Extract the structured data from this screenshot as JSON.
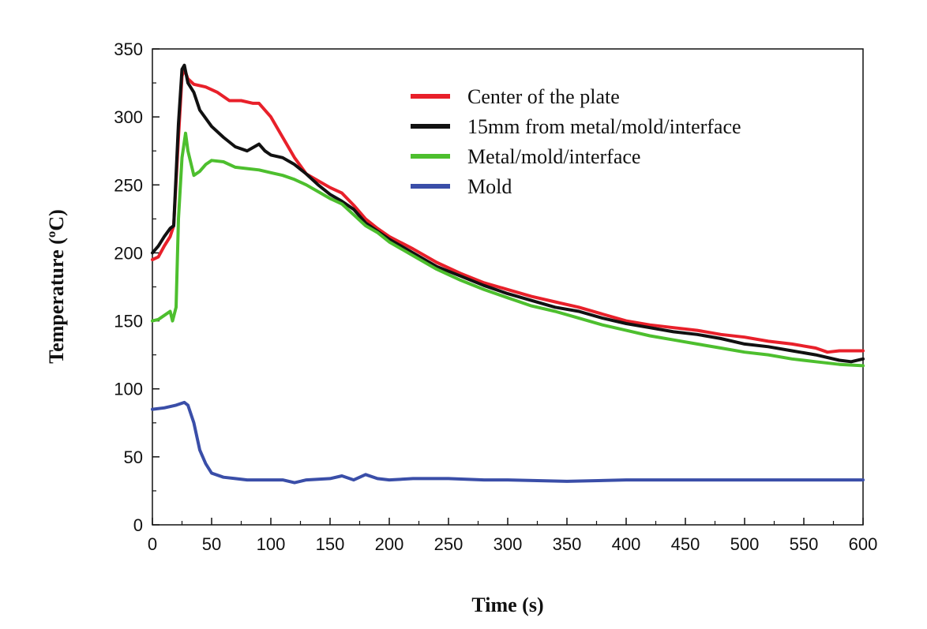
{
  "chart_data": {
    "type": "line",
    "title": "",
    "xlabel": "Time (s)",
    "ylabel": "Temperature (ºC)",
    "xlim": [
      0,
      600
    ],
    "ylim": [
      0,
      350
    ],
    "xticks": [
      0,
      50,
      100,
      150,
      200,
      250,
      300,
      350,
      400,
      450,
      500,
      550,
      600
    ],
    "yticks": [
      0,
      50,
      100,
      150,
      200,
      250,
      300,
      350
    ],
    "grid": false,
    "legend_position": "top-right",
    "series": [
      {
        "name": "Center of the plate",
        "color": "#e8202a",
        "points": [
          [
            0,
            195
          ],
          [
            5,
            197
          ],
          [
            10,
            205
          ],
          [
            15,
            212
          ],
          [
            18,
            220
          ],
          [
            22,
            285
          ],
          [
            25,
            330
          ],
          [
            27,
            335
          ],
          [
            30,
            328
          ],
          [
            35,
            324
          ],
          [
            45,
            322
          ],
          [
            55,
            318
          ],
          [
            65,
            312
          ],
          [
            75,
            312
          ],
          [
            85,
            310
          ],
          [
            90,
            310
          ],
          [
            100,
            300
          ],
          [
            110,
            285
          ],
          [
            120,
            270
          ],
          [
            130,
            258
          ],
          [
            140,
            253
          ],
          [
            150,
            248
          ],
          [
            160,
            244
          ],
          [
            170,
            235
          ],
          [
            180,
            225
          ],
          [
            190,
            218
          ],
          [
            200,
            212
          ],
          [
            220,
            203
          ],
          [
            240,
            193
          ],
          [
            260,
            185
          ],
          [
            280,
            178
          ],
          [
            300,
            173
          ],
          [
            320,
            168
          ],
          [
            340,
            164
          ],
          [
            360,
            160
          ],
          [
            380,
            155
          ],
          [
            400,
            150
          ],
          [
            420,
            147
          ],
          [
            440,
            145
          ],
          [
            460,
            143
          ],
          [
            480,
            140
          ],
          [
            500,
            138
          ],
          [
            520,
            135
          ],
          [
            540,
            133
          ],
          [
            560,
            130
          ],
          [
            570,
            127
          ],
          [
            580,
            128
          ],
          [
            600,
            128
          ]
        ]
      },
      {
        "name": "15mm from metal/mold/interface",
        "color": "#111111",
        "points": [
          [
            0,
            200
          ],
          [
            5,
            205
          ],
          [
            10,
            212
          ],
          [
            15,
            218
          ],
          [
            18,
            220
          ],
          [
            22,
            295
          ],
          [
            25,
            335
          ],
          [
            27,
            338
          ],
          [
            30,
            325
          ],
          [
            35,
            318
          ],
          [
            40,
            305
          ],
          [
            50,
            293
          ],
          [
            60,
            285
          ],
          [
            70,
            278
          ],
          [
            80,
            275
          ],
          [
            90,
            280
          ],
          [
            95,
            275
          ],
          [
            100,
            272
          ],
          [
            110,
            270
          ],
          [
            120,
            265
          ],
          [
            130,
            258
          ],
          [
            140,
            250
          ],
          [
            150,
            243
          ],
          [
            160,
            238
          ],
          [
            170,
            232
          ],
          [
            180,
            222
          ],
          [
            190,
            216
          ],
          [
            200,
            210
          ],
          [
            220,
            200
          ],
          [
            240,
            190
          ],
          [
            260,
            183
          ],
          [
            280,
            176
          ],
          [
            300,
            170
          ],
          [
            320,
            165
          ],
          [
            340,
            160
          ],
          [
            360,
            157
          ],
          [
            380,
            152
          ],
          [
            400,
            148
          ],
          [
            420,
            145
          ],
          [
            440,
            142
          ],
          [
            460,
            140
          ],
          [
            480,
            137
          ],
          [
            500,
            133
          ],
          [
            520,
            131
          ],
          [
            540,
            128
          ],
          [
            560,
            125
          ],
          [
            580,
            121
          ],
          [
            590,
            120
          ],
          [
            600,
            122
          ]
        ]
      },
      {
        "name": "Metal/mold/interface",
        "color": "#4dbf2e",
        "points": [
          [
            0,
            150
          ],
          [
            5,
            151
          ],
          [
            10,
            154
          ],
          [
            15,
            157
          ],
          [
            17,
            150
          ],
          [
            20,
            160
          ],
          [
            22,
            225
          ],
          [
            25,
            270
          ],
          [
            28,
            288
          ],
          [
            30,
            275
          ],
          [
            35,
            257
          ],
          [
            40,
            260
          ],
          [
            45,
            265
          ],
          [
            50,
            268
          ],
          [
            60,
            267
          ],
          [
            70,
            263
          ],
          [
            80,
            262
          ],
          [
            90,
            261
          ],
          [
            100,
            259
          ],
          [
            110,
            257
          ],
          [
            120,
            254
          ],
          [
            130,
            250
          ],
          [
            140,
            245
          ],
          [
            150,
            240
          ],
          [
            160,
            236
          ],
          [
            170,
            228
          ],
          [
            180,
            220
          ],
          [
            190,
            215
          ],
          [
            200,
            208
          ],
          [
            220,
            198
          ],
          [
            240,
            188
          ],
          [
            260,
            180
          ],
          [
            280,
            173
          ],
          [
            300,
            167
          ],
          [
            320,
            161
          ],
          [
            340,
            157
          ],
          [
            360,
            152
          ],
          [
            380,
            147
          ],
          [
            400,
            143
          ],
          [
            420,
            139
          ],
          [
            440,
            136
          ],
          [
            460,
            133
          ],
          [
            480,
            130
          ],
          [
            500,
            127
          ],
          [
            520,
            125
          ],
          [
            540,
            122
          ],
          [
            560,
            120
          ],
          [
            580,
            118
          ],
          [
            600,
            117
          ]
        ]
      },
      {
        "name": "Mold",
        "color": "#3a4ea8",
        "points": [
          [
            0,
            85
          ],
          [
            10,
            86
          ],
          [
            20,
            88
          ],
          [
            27,
            90
          ],
          [
            30,
            88
          ],
          [
            35,
            75
          ],
          [
            40,
            55
          ],
          [
            45,
            45
          ],
          [
            50,
            38
          ],
          [
            60,
            35
          ],
          [
            70,
            34
          ],
          [
            80,
            33
          ],
          [
            90,
            33
          ],
          [
            100,
            33
          ],
          [
            110,
            33
          ],
          [
            120,
            31
          ],
          [
            130,
            33
          ],
          [
            150,
            34
          ],
          [
            160,
            36
          ],
          [
            170,
            33
          ],
          [
            180,
            37
          ],
          [
            190,
            34
          ],
          [
            200,
            33
          ],
          [
            220,
            34
          ],
          [
            250,
            34
          ],
          [
            280,
            33
          ],
          [
            300,
            33
          ],
          [
            350,
            32
          ],
          [
            400,
            33
          ],
          [
            450,
            33
          ],
          [
            500,
            33
          ],
          [
            550,
            33
          ],
          [
            600,
            33
          ]
        ]
      }
    ]
  }
}
